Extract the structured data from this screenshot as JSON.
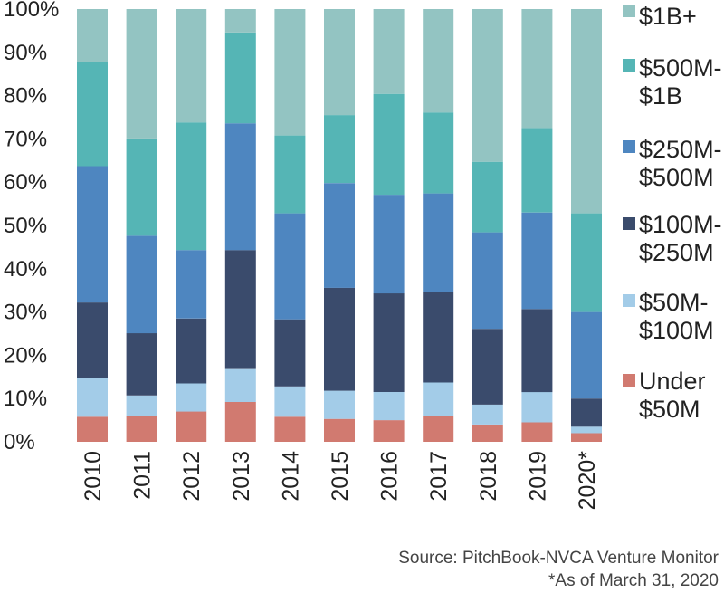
{
  "chart_data": {
    "type": "bar",
    "stacked": true,
    "categories": [
      "2010",
      "2011",
      "2012",
      "2013",
      "2014",
      "2015",
      "2016",
      "2017",
      "2018",
      "2019",
      "2020*"
    ],
    "ylim": [
      0,
      100
    ],
    "yticks": [
      "0%",
      "10%",
      "20%",
      "30%",
      "40%",
      "50%",
      "60%",
      "70%",
      "80%",
      "90%",
      "100%"
    ],
    "grid": false,
    "legend_position": "right",
    "series": [
      {
        "name": "Under\n$50M",
        "color": "#d17a70",
        "values": [
          5.8,
          6.0,
          7.0,
          9.2,
          5.8,
          5.3,
          5.0,
          6.0,
          4.0,
          4.5,
          2.0
        ]
      },
      {
        "name": "$50M-\n$100M",
        "color": "#a3cce8",
        "values": [
          9.0,
          4.7,
          6.5,
          7.6,
          7.0,
          6.5,
          6.5,
          7.7,
          4.6,
          7.0,
          1.5
        ]
      },
      {
        "name": "$100M-\n$250M",
        "color": "#3a4b6c",
        "values": [
          17.4,
          14.4,
          15.0,
          27.5,
          15.5,
          23.8,
          22.8,
          21.0,
          17.5,
          19.2,
          6.5
        ]
      },
      {
        "name": "$250M-\n$500M",
        "color": "#4e86c0",
        "values": [
          31.5,
          22.5,
          15.8,
          29.3,
          24.5,
          24.2,
          22.8,
          22.7,
          22.3,
          22.3,
          20.0
        ]
      },
      {
        "name": "$500M-\n$1B",
        "color": "#55b5b5",
        "values": [
          24.0,
          22.5,
          29.5,
          21.0,
          18.0,
          15.7,
          23.3,
          18.7,
          16.3,
          19.5,
          22.8
        ]
      },
      {
        "name": "$1B+",
        "color": "#93c4c2",
        "values": [
          12.3,
          29.9,
          26.2,
          5.4,
          29.2,
          24.5,
          19.6,
          23.9,
          35.3,
          27.5,
          47.2
        ]
      }
    ]
  },
  "footer": {
    "source": "Source: PitchBook-NVCA Venture Monitor",
    "note": "*As of March 31, 2020"
  }
}
